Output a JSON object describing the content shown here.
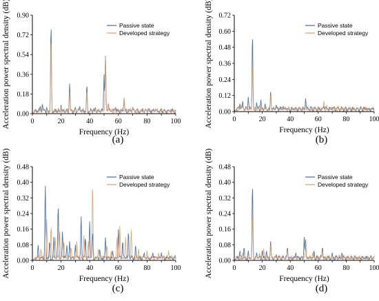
{
  "chart_data": [
    {
      "type": "line",
      "panel_label": "(a)",
      "xlabel": "Frequency (Hz)",
      "ylabel": "Acceleration power spectral density (dB)",
      "xlim": [
        0,
        100
      ],
      "ylim": [
        0,
        0.9
      ],
      "xticks": [
        "0",
        "10",
        "20",
        "30",
        "40",
        "50",
        "60",
        "70",
        "80",
        "90",
        "100"
      ],
      "yticks": [
        "0.00",
        "0.18",
        "0.36",
        "0.54",
        "0.72",
        "0.90"
      ],
      "legend": "top-right",
      "series": [
        {
          "name": "Passive state",
          "color": "#4a6b9a",
          "peaks": [
            [
              5.5,
              0.07
            ],
            [
              7,
              0.09
            ],
            [
              10,
              0.06
            ],
            [
              13,
              0.84
            ],
            [
              20,
              0.08
            ],
            [
              26,
              0.28
            ],
            [
              30,
              0.06
            ],
            [
              33,
              0.07
            ],
            [
              38,
              0.27
            ],
            [
              44,
              0.06
            ],
            [
              50,
              0.36
            ],
            [
              51,
              0.54
            ],
            [
              53,
              0.1
            ],
            [
              58,
              0.06
            ],
            [
              64,
              0.14
            ],
            [
              70,
              0.06
            ],
            [
              77,
              0.05
            ],
            [
              86,
              0.04
            ],
            [
              97,
              0.04
            ]
          ]
        },
        {
          "name": "Developed strategy",
          "color": "#d8a070",
          "peaks": [
            [
              6,
              0.05
            ],
            [
              13,
              0.7
            ],
            [
              20,
              0.06
            ],
            [
              26,
              0.2
            ],
            [
              38,
              0.22
            ],
            [
              44,
              0.05
            ],
            [
              51,
              0.53
            ],
            [
              53,
              0.1
            ],
            [
              64,
              0.15
            ],
            [
              70,
              0.05
            ],
            [
              86,
              0.04
            ]
          ]
        }
      ]
    },
    {
      "type": "line",
      "panel_label": "(b)",
      "xlabel": "Frequency (Hz)",
      "ylabel": "Acceleration power spectral density (dB)",
      "xlim": [
        0,
        100
      ],
      "ylim": [
        0,
        0.72
      ],
      "xticks": [
        "0",
        "10",
        "20",
        "30",
        "40",
        "50",
        "60",
        "70",
        "80",
        "90",
        "100"
      ],
      "yticks": [
        "0.00",
        "0.12",
        "0.24",
        "0.36",
        "0.48",
        "0.60",
        "0.72"
      ],
      "legend": "top-right",
      "series": [
        {
          "name": "Passive state",
          "color": "#4a6b9a",
          "peaks": [
            [
              4,
              0.06
            ],
            [
              6,
              0.08
            ],
            [
              10,
              0.11
            ],
            [
              13,
              0.59
            ],
            [
              16,
              0.07
            ],
            [
              19,
              0.09
            ],
            [
              22,
              0.06
            ],
            [
              26,
              0.15
            ],
            [
              30,
              0.05
            ],
            [
              35,
              0.04
            ],
            [
              44,
              0.03
            ],
            [
              51,
              0.1
            ],
            [
              57,
              0.03
            ],
            [
              64,
              0.04
            ],
            [
              70,
              0.03
            ]
          ]
        },
        {
          "name": "Developed strategy",
          "color": "#d8a070",
          "peaks": [
            [
              5,
              0.05
            ],
            [
              13,
              0.36
            ],
            [
              18,
              0.05
            ],
            [
              26,
              0.12
            ],
            [
              51,
              0.05
            ],
            [
              64,
              0.08
            ],
            [
              66,
              0.05
            ]
          ]
        }
      ]
    },
    {
      "type": "line",
      "panel_label": "(c)",
      "xlabel": "Frequency (Hz)",
      "ylabel": "Acceleration power spectral density (dB)",
      "xlim": [
        0,
        100
      ],
      "ylim": [
        0,
        0.48
      ],
      "xticks": [
        "0",
        "10",
        "20",
        "30",
        "40",
        "50",
        "60",
        "70",
        "80",
        "90",
        "100"
      ],
      "yticks": [
        "0.00",
        "0.08",
        "0.16",
        "0.24",
        "0.32",
        "0.40",
        "0.48"
      ],
      "legend": "top-right",
      "series": [
        {
          "name": "Passive state",
          "color": "#4a6b9a",
          "peaks": [
            [
              4,
              0.08
            ],
            [
              9,
              0.39
            ],
            [
              12,
              0.1
            ],
            [
              15,
              0.12
            ],
            [
              18,
              0.29
            ],
            [
              21,
              0.15
            ],
            [
              24,
              0.08
            ],
            [
              26,
              0.1
            ],
            [
              30,
              0.08
            ],
            [
              34,
              0.23
            ],
            [
              37,
              0.12
            ],
            [
              40,
              0.2
            ],
            [
              42,
              0.15
            ],
            [
              47,
              0.06
            ],
            [
              51,
              0.12
            ],
            [
              56,
              0.05
            ],
            [
              60,
              0.16
            ],
            [
              63,
              0.1
            ],
            [
              67,
              0.15
            ],
            [
              72,
              0.08
            ],
            [
              78,
              0.04
            ],
            [
              84,
              0.04
            ],
            [
              90,
              0.04
            ]
          ]
        },
        {
          "name": "Developed strategy",
          "color": "#d8a070",
          "peaks": [
            [
              6,
              0.06
            ],
            [
              10,
              0.21
            ],
            [
              13,
              0.18
            ],
            [
              16,
              0.12
            ],
            [
              19,
              0.15
            ],
            [
              22,
              0.1
            ],
            [
              27,
              0.07
            ],
            [
              31,
              0.1
            ],
            [
              36,
              0.13
            ],
            [
              39,
              0.1
            ],
            [
              42,
              0.4
            ],
            [
              46,
              0.06
            ],
            [
              52,
              0.08
            ],
            [
              55,
              0.05
            ],
            [
              59,
              0.12
            ],
            [
              61,
              0.18
            ],
            [
              65,
              0.12
            ],
            [
              69,
              0.16
            ],
            [
              74,
              0.06
            ],
            [
              80,
              0.05
            ],
            [
              88,
              0.04
            ],
            [
              95,
              0.05
            ]
          ]
        }
      ]
    },
    {
      "type": "line",
      "panel_label": "(d)",
      "xlabel": "Frequency (Hz)",
      "ylabel": "Acceleration power spectral density (dB)",
      "xlim": [
        0,
        100
      ],
      "ylim": [
        0,
        0.48
      ],
      "xticks": [
        "0",
        "10",
        "20",
        "30",
        "40",
        "50",
        "60",
        "70",
        "80",
        "90",
        "100"
      ],
      "yticks": [
        "0.00",
        "0.08",
        "0.16",
        "0.24",
        "0.32",
        "0.40",
        "0.48"
      ],
      "legend": "top-right",
      "series": [
        {
          "name": "Passive state",
          "color": "#4a6b9a",
          "peaks": [
            [
              4,
              0.05
            ],
            [
              7,
              0.07
            ],
            [
              10,
              0.05
            ],
            [
              13,
              0.4
            ],
            [
              16,
              0.04
            ],
            [
              20,
              0.05
            ],
            [
              23,
              0.05
            ],
            [
              26,
              0.1
            ],
            [
              30,
              0.03
            ],
            [
              38,
              0.07
            ],
            [
              44,
              0.04
            ],
            [
              50,
              0.12
            ],
            [
              51,
              0.11
            ],
            [
              57,
              0.05
            ],
            [
              63,
              0.07
            ],
            [
              70,
              0.04
            ],
            [
              77,
              0.04
            ],
            [
              86,
              0.02
            ]
          ]
        },
        {
          "name": "Developed strategy",
          "color": "#d8a070",
          "peaks": [
            [
              6,
              0.04
            ],
            [
              13,
              0.24
            ],
            [
              18,
              0.04
            ],
            [
              21,
              0.06
            ],
            [
              26,
              0.08
            ],
            [
              38,
              0.05
            ],
            [
              51,
              0.09
            ],
            [
              56,
              0.04
            ],
            [
              63,
              0.05
            ],
            [
              75,
              0.03
            ]
          ]
        }
      ]
    }
  ]
}
